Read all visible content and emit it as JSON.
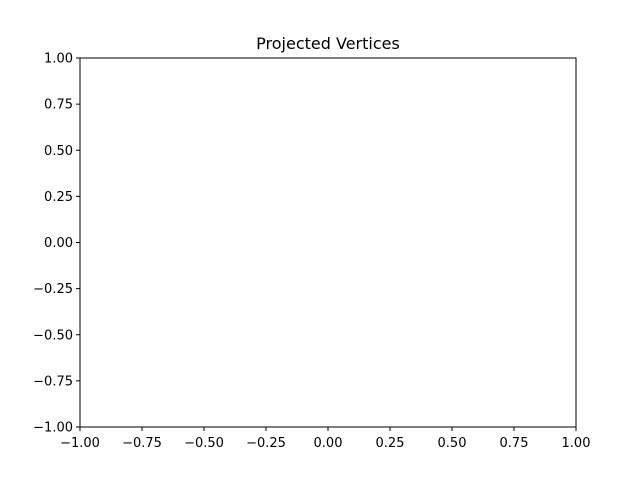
{
  "chart_data": {
    "type": "scatter",
    "title": "Projected Vertices",
    "xlabel": "",
    "ylabel": "",
    "xlim": [
      -1.0,
      1.0
    ],
    "ylim": [
      -1.0,
      1.0
    ],
    "x_ticks": [
      "−1.00",
      "−0.75",
      "−0.50",
      "−0.25",
      "0.00",
      "0.25",
      "0.50",
      "0.75",
      "1.00"
    ],
    "y_ticks": [
      "1.00",
      "0.75",
      "0.50",
      "0.25",
      "0.00",
      "−0.25",
      "−0.50",
      "−0.75",
      "−1.00"
    ],
    "x": [],
    "y": [],
    "grid": false,
    "legend": "none",
    "colors": {
      "axes": "#000000",
      "background": "#ffffff"
    }
  }
}
